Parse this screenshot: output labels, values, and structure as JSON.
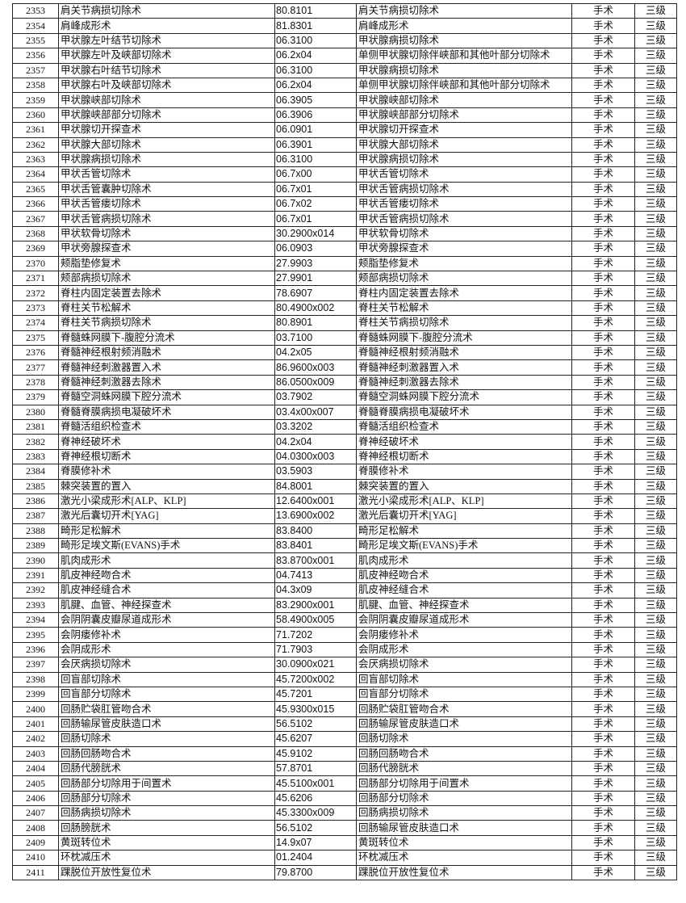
{
  "table": {
    "rows": [
      [
        "2353",
        "肩关节病损切除术",
        "80.8101",
        "肩关节病损切除术",
        "手术",
        "三级"
      ],
      [
        "2354",
        "肩峰成形术",
        "81.8301",
        "肩峰成形术",
        "手术",
        "三级"
      ],
      [
        "2355",
        "甲状腺左叶结节切除术",
        "06.3100",
        "甲状腺病损切除术",
        "手术",
        "三级"
      ],
      [
        "2356",
        "甲状腺左叶及峡部切除术",
        "06.2x04",
        "单侧甲状腺切除伴峡部和其他叶部分切除术",
        "手术",
        "三级"
      ],
      [
        "2357",
        "甲状腺右叶结节切除术",
        "06.3100",
        "甲状腺病损切除术",
        "手术",
        "三级"
      ],
      [
        "2358",
        "甲状腺右叶及峡部切除术",
        "06.2x04",
        "单侧甲状腺切除伴峡部和其他叶部分切除术",
        "手术",
        "三级"
      ],
      [
        "2359",
        "甲状腺峡部切除术",
        "06.3905",
        "甲状腺峡部切除术",
        "手术",
        "三级"
      ],
      [
        "2360",
        "甲状腺峡部部分切除术",
        "06.3906",
        "甲状腺峡部部分切除术",
        "手术",
        "三级"
      ],
      [
        "2361",
        "甲状腺切开探查术",
        "06.0901",
        "甲状腺切开探查术",
        "手术",
        "三级"
      ],
      [
        "2362",
        "甲状腺大部切除术",
        "06.3901",
        "甲状腺大部切除术",
        "手术",
        "三级"
      ],
      [
        "2363",
        "甲状腺病损切除术",
        "06.3100",
        "甲状腺病损切除术",
        "手术",
        "三级"
      ],
      [
        "2364",
        "甲状舌管切除术",
        "06.7x00",
        "甲状舌管切除术",
        "手术",
        "三级"
      ],
      [
        "2365",
        "甲状舌管囊肿切除术",
        "06.7x01",
        "甲状舌管病损切除术",
        "手术",
        "三级"
      ],
      [
        "2366",
        "甲状舌管瘘切除术",
        "06.7x02",
        "甲状舌管瘘切除术",
        "手术",
        "三级"
      ],
      [
        "2367",
        "甲状舌管病损切除术",
        "06.7x01",
        "甲状舌管病损切除术",
        "手术",
        "三级"
      ],
      [
        "2368",
        "甲状软骨切除术",
        "30.2900x014",
        "甲状软骨切除术",
        "手术",
        "三级"
      ],
      [
        "2369",
        "甲状旁腺探查术",
        "06.0903",
        "甲状旁腺探查术",
        "手术",
        "三级"
      ],
      [
        "2370",
        "颊脂垫修复术",
        "27.9903",
        "颊脂垫修复术",
        "手术",
        "三级"
      ],
      [
        "2371",
        "颊部病损切除术",
        "27.9901",
        "颊部病损切除术",
        "手术",
        "三级"
      ],
      [
        "2372",
        "脊柱内固定装置去除术",
        "78.6907",
        "脊柱内固定装置去除术",
        "手术",
        "三级"
      ],
      [
        "2373",
        "脊柱关节松解术",
        "80.4900x002",
        "脊柱关节松解术",
        "手术",
        "三级"
      ],
      [
        "2374",
        "脊柱关节病损切除术",
        "80.8901",
        "脊柱关节病损切除术",
        "手术",
        "三级"
      ],
      [
        "2375",
        "脊髓蛛网膜下-腹腔分流术",
        "03.7100",
        "脊髓蛛网膜下-腹腔分流术",
        "手术",
        "三级"
      ],
      [
        "2376",
        "脊髓神经根射频消融术",
        "04.2x05",
        "脊髓神经根射频消融术",
        "手术",
        "三级"
      ],
      [
        "2377",
        "脊髓神经刺激器置入术",
        "86.9600x003",
        "脊髓神经刺激器置入术",
        "手术",
        "三级"
      ],
      [
        "2378",
        "脊髓神经刺激器去除术",
        "86.0500x009",
        "脊髓神经刺激器去除术",
        "手术",
        "三级"
      ],
      [
        "2379",
        "脊髓空洞蛛网膜下腔分流术",
        "03.7902",
        "脊髓空洞蛛网膜下腔分流术",
        "手术",
        "三级"
      ],
      [
        "2380",
        "脊髓脊膜病损电凝破坏术",
        "03.4x00x007",
        "脊髓脊膜病损电凝破坏术",
        "手术",
        "三级"
      ],
      [
        "2381",
        "脊髓活组织检查术",
        "03.3202",
        "脊髓活组织检查术",
        "手术",
        "三级"
      ],
      [
        "2382",
        "脊神经破坏术",
        "04.2x04",
        "脊神经破坏术",
        "手术",
        "三级"
      ],
      [
        "2383",
        "脊神经根切断术",
        "04.0300x003",
        "脊神经根切断术",
        "手术",
        "三级"
      ],
      [
        "2384",
        "脊膜修补术",
        "03.5903",
        "脊膜修补术",
        "手术",
        "三级"
      ],
      [
        "2385",
        "棘突装置的置入",
        "84.8001",
        "棘突装置的置入",
        "手术",
        "三级"
      ],
      [
        "2386",
        "激光小梁成形术[ALP、KLP]",
        "12.6400x001",
        "激光小梁成形术[ALP、KLP]",
        "手术",
        "三级"
      ],
      [
        "2387",
        "激光后囊切开术[YAG]",
        "13.6900x002",
        "激光后囊切开术[YAG]",
        "手术",
        "三级"
      ],
      [
        "2388",
        "畸形足松解术",
        "83.8400",
        "畸形足松解术",
        "手术",
        "三级"
      ],
      [
        "2389",
        "畸形足埃文斯(EVANS)手术",
        "83.8401",
        "畸形足埃文斯(EVANS)手术",
        "手术",
        "三级"
      ],
      [
        "2390",
        "肌肉成形术",
        "83.8700x001",
        "肌肉成形术",
        "手术",
        "三级"
      ],
      [
        "2391",
        "肌皮神经吻合术",
        "04.7413",
        "肌皮神经吻合术",
        "手术",
        "三级"
      ],
      [
        "2392",
        "肌皮神经缝合术",
        "04.3x09",
        "肌皮神经缝合术",
        "手术",
        "三级"
      ],
      [
        "2393",
        "肌腱、血管、神经探查术",
        "83.2900x001",
        "肌腱、血管、神经探查术",
        "手术",
        "三级"
      ],
      [
        "2394",
        "会阴阴囊皮瓣尿道成形术",
        "58.4900x005",
        "会阴阴囊皮瓣尿道成形术",
        "手术",
        "三级"
      ],
      [
        "2395",
        "会阴瘘修补术",
        "71.7202",
        "会阴瘘修补术",
        "手术",
        "三级"
      ],
      [
        "2396",
        "会阴成形术",
        "71.7903",
        "会阴成形术",
        "手术",
        "三级"
      ],
      [
        "2397",
        "会厌病损切除术",
        "30.0900x021",
        "会厌病损切除术",
        "手术",
        "三级"
      ],
      [
        "2398",
        "回盲部切除术",
        "45.7200x002",
        "回盲部切除术",
        "手术",
        "三级"
      ],
      [
        "2399",
        "回盲部分切除术",
        "45.7201",
        "回盲部分切除术",
        "手术",
        "三级"
      ],
      [
        "2400",
        "回肠贮袋肛管吻合术",
        "45.9300x015",
        "回肠贮袋肛管吻合术",
        "手术",
        "三级"
      ],
      [
        "2401",
        "回肠输尿管皮肤造口术",
        "56.5102",
        "回肠输尿管皮肤造口术",
        "手术",
        "三级"
      ],
      [
        "2402",
        "回肠切除术",
        "45.6207",
        "回肠切除术",
        "手术",
        "三级"
      ],
      [
        "2403",
        "回肠回肠吻合术",
        "45.9102",
        "回肠回肠吻合术",
        "手术",
        "三级"
      ],
      [
        "2404",
        "回肠代膀胱术",
        "57.8701",
        "回肠代膀胱术",
        "手术",
        "三级"
      ],
      [
        "2405",
        "回肠部分切除用于间置术",
        "45.5100x001",
        "回肠部分切除用于间置术",
        "手术",
        "三级"
      ],
      [
        "2406",
        "回肠部分切除术",
        "45.6206",
        "回肠部分切除术",
        "手术",
        "三级"
      ],
      [
        "2407",
        "回肠病损切除术",
        "45.3300x009",
        "回肠病损切除术",
        "手术",
        "三级"
      ],
      [
        "2408",
        "回肠膀胱术",
        "56.5102",
        "回肠输尿管皮肤造口术",
        "手术",
        "三级"
      ],
      [
        "2409",
        "黄斑转位术",
        "14.9x07",
        "黄斑转位术",
        "手术",
        "三级"
      ],
      [
        "2410",
        "环枕减压术",
        "01.2404",
        "环枕减压术",
        "手术",
        "三级"
      ],
      [
        "2411",
        "踝脱位开放性复位术",
        "79.8700",
        "踝脱位开放性复位术",
        "手术",
        "三级"
      ]
    ]
  }
}
